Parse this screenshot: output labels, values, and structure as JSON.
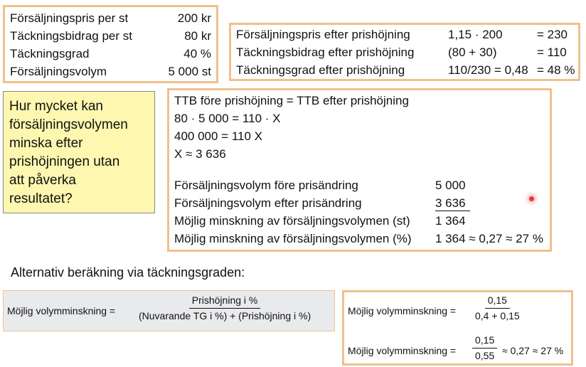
{
  "box1": {
    "rows": [
      {
        "label": "Försäljningspris per st",
        "value": "200 kr"
      },
      {
        "label": "Täckningsbidrag per st",
        "value": "80 kr"
      },
      {
        "label": "Täckningsgrad",
        "value": "40 %"
      },
      {
        "label": "Försäljningsvolym",
        "value": "5 000 st"
      }
    ]
  },
  "box2": {
    "rows": [
      {
        "label": "Försäljningspris efter prishöjning",
        "calc": "1,15 · 200",
        "result": "= 230"
      },
      {
        "label": "Täckningsbidrag efter prishöjning",
        "calc": "(80 + 30)",
        "result": "= 110"
      },
      {
        "label": "Täckningsgrad efter prishöjning",
        "calc": "110/230 = 0,48",
        "result": "= 48 %"
      }
    ]
  },
  "question": {
    "lines": [
      "Hur mycket kan",
      "försäljningsvolymen",
      "minska efter",
      "prishöjningen utan",
      "att påverka",
      "resultatet?"
    ]
  },
  "box3": {
    "equations": [
      "TTB före prishöjning = TTB efter prishöjning",
      "80 · 5 000 = 110 · X",
      "400 000 = 110 X",
      "X ≈ 3 636"
    ],
    "rows": [
      {
        "label": "Försäljningsvolym före prisändring",
        "value": "5 000"
      },
      {
        "label": "Försäljningsvolym efter prisändring",
        "value": "3 636"
      },
      {
        "label": "Möjlig minskning av försäljningsvolymen (st)",
        "value": "1 364"
      },
      {
        "label": "Möjlig minskning av försäljningsvolymen (%)",
        "value": "1 364 ≈ 0,27 ≈ 27 %"
      }
    ]
  },
  "alt_heading": "Alternativ beräkning via täckningsgraden:",
  "formula": {
    "label": "Möjlig volymminskning =",
    "numerator": "Prishöjning i %",
    "denominator": "(Nuvarande TG i %) + (Prishöjning i %)"
  },
  "box5": {
    "row1": {
      "label": "Möjlig volymminskning =",
      "numerator": "0,15",
      "denominator": "0,4 + 0,15"
    },
    "row2": {
      "label": "Möjlig volymminskning =",
      "numerator": "0,15",
      "denominator": "0,55",
      "tail": "≈ 0,27 ≈ 27 %"
    }
  },
  "colors": {
    "box_border": "#f2bf8c",
    "question_bg": "#fdf7b0",
    "formula_bg": "#e9eaec",
    "pointer": "#e53935"
  }
}
